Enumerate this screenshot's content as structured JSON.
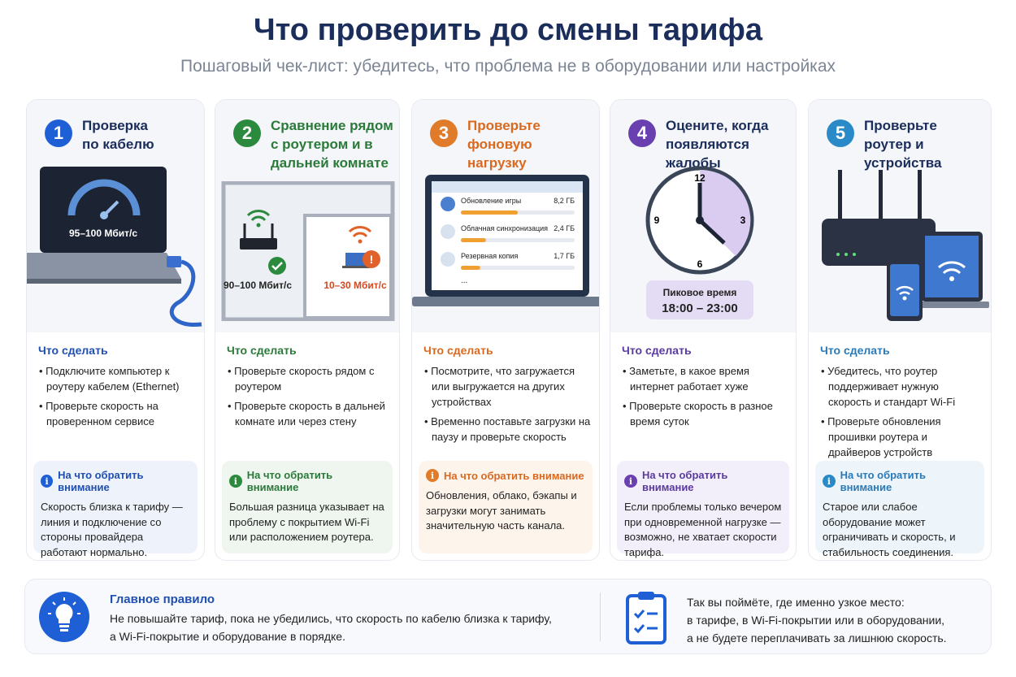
{
  "header": {
    "title": "Что проверить до смены тарифа",
    "subtitle": "Пошаговый чек-лист: убедитесь, что проблема не в оборудовании или настройках"
  },
  "colors": {
    "blue": "#1f5fd6",
    "green": "#2b8a3e",
    "orange": "#e07b2a",
    "purple": "#6a40b0",
    "teal": "#2a8ac8",
    "navy": "#1b2d5a"
  },
  "cards": [
    {
      "num": "1",
      "title": "Проверка по кабелю",
      "todo_label": "Что сделать",
      "todo": [
        "Подключите компьютер к роутеру кабелем (Ethernet)",
        "Проверьте скорость на проверенном сервисе"
      ],
      "tip_label": "На что обратить внимание",
      "tip": "Скорость близка к тарифу — линия и подключение со стороны провайдера работают нормально.",
      "illustration": {
        "icon": "laptop-speedometer-icon",
        "speed": "95–100 Мбит/с"
      }
    },
    {
      "num": "2",
      "title": "Сравнение рядом с роутером и в дальней комнате",
      "todo_label": "Что сделать",
      "todo": [
        "Проверьте скорость рядом с роутером",
        "Проверьте скорость в дальней комнате или через стену"
      ],
      "tip_label": "На что обратить внимание",
      "tip": "Большая разница указывает на проблему с покрытием Wi-Fi или расположением роутера.",
      "illustration": {
        "icon": "floorplan-icon",
        "near_speed": "90–100 Мбит/с",
        "far_speed": "10–30 Мбит/с"
      }
    },
    {
      "num": "3",
      "title": "Проверьте фоновую нагрузку",
      "todo_label": "Что сделать",
      "todo": [
        "Посмотрите, что загружается или выгружается на других устройствах",
        "Временно поставьте загрузки на паузу и проверьте скорость"
      ],
      "tip_label": "На что обратить внимание",
      "tip": "Обновления, облако, бэкапы и загрузки могут занимать значительную часть канала.",
      "illustration": {
        "icon": "laptop-downloads-icon",
        "downloads": [
          {
            "name": "Обновление игры",
            "size": "8,2 ГБ",
            "progress": 0.5
          },
          {
            "name": "Облачная синхронизация",
            "size": "2,4 ГБ",
            "progress": 0.22
          },
          {
            "name": "Резервная копия",
            "size": "1,7 ГБ",
            "progress": 0.17
          }
        ],
        "more": "..."
      }
    },
    {
      "num": "4",
      "title": "Оцените, когда появляются жалобы",
      "todo_label": "Что сделать",
      "todo": [
        "Заметьте, в какое время интернет работает хуже",
        "Проверьте скорость в разное время суток"
      ],
      "tip_label": "На что обратить внимание",
      "tip": "Если проблемы только вечером при одновременной нагрузке — возможно, не хватает скорости тарифа.",
      "illustration": {
        "icon": "clock-icon",
        "clock_numbers": [
          "12",
          "3",
          "6",
          "9"
        ],
        "peak_label": "Пиковое время",
        "peak_time": "18:00 – 23:00"
      }
    },
    {
      "num": "5",
      "title": "Проверьте роутер и устройства",
      "todo_label": "Что сделать",
      "todo": [
        "Убедитесь, что роутер поддерживает нужную скорость и стандарт Wi-Fi",
        "Проверьте обновления прошивки роутера и драйверов устройств"
      ],
      "tip_label": "На что обратить внимание",
      "tip": "Старое или слабое оборудование может ограничивать и скорость, и стабильность соединения.",
      "illustration": {
        "icon": "router-devices-icon"
      }
    }
  ],
  "banner": {
    "icon": "lightbulb-icon",
    "rule_title": "Главное правило",
    "rule_text_1": "Не повышайте тариф, пока не убедились, что скорость по кабелю близка к тарифу,",
    "rule_text_2": "а Wi-Fi-покрытие и оборудование в порядке.",
    "checklist_icon": "clipboard-checklist-icon",
    "note_1": "Так вы поймёте, где именно узкое место:",
    "note_2": "в тарифе, в Wi-Fi-покрытии или в оборудовании,",
    "note_3": "а не будете переплачивать за лишнюю скорость."
  }
}
